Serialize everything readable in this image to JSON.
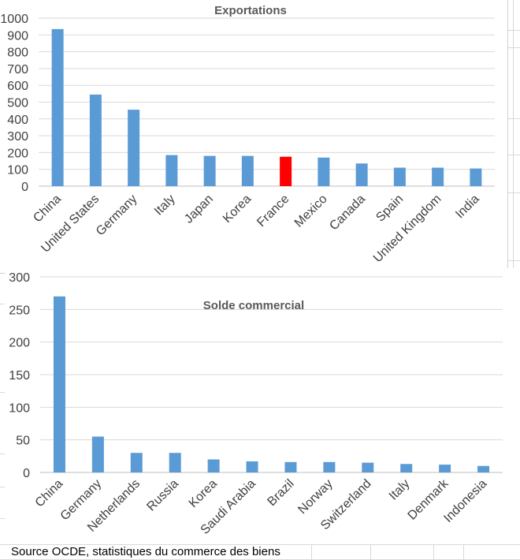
{
  "chart_data": [
    {
      "type": "bar",
      "title": "Exportations",
      "categories": [
        "China",
        "United States",
        "Germany",
        "Italy",
        "Japan",
        "Korea",
        "France",
        "Mexico",
        "Canada",
        "Spain",
        "United Kingdom",
        "India"
      ],
      "values": [
        935,
        545,
        455,
        185,
        180,
        180,
        175,
        170,
        135,
        110,
        110,
        105
      ],
      "highlight": {
        "category": "France",
        "color": "#ff0000"
      },
      "bar_color": "#5b9bd5",
      "ylim": [
        0,
        1000
      ],
      "yticks": [
        0,
        100,
        200,
        300,
        400,
        500,
        600,
        700,
        800,
        900,
        1000
      ],
      "xlabel": "",
      "ylabel": "",
      "grid": true
    },
    {
      "type": "bar",
      "title": "Solde commercial",
      "categories": [
        "China",
        "Germany",
        "Netherlands",
        "Russia",
        "Korea",
        "Saudi Arabia",
        "Brazil",
        "Norway",
        "Switzerland",
        "Italy",
        "Denmark",
        "Indonesia"
      ],
      "values": [
        270,
        55,
        30,
        30,
        20,
        17,
        16,
        16,
        15,
        13,
        12,
        10
      ],
      "bar_color": "#5b9bd5",
      "ylim": [
        0,
        300
      ],
      "yticks": [
        0,
        50,
        100,
        150,
        200,
        250,
        300
      ],
      "xlabel": "",
      "ylabel": "",
      "grid": true
    }
  ],
  "source": "Source OCDE, statistiques du commerce des biens"
}
